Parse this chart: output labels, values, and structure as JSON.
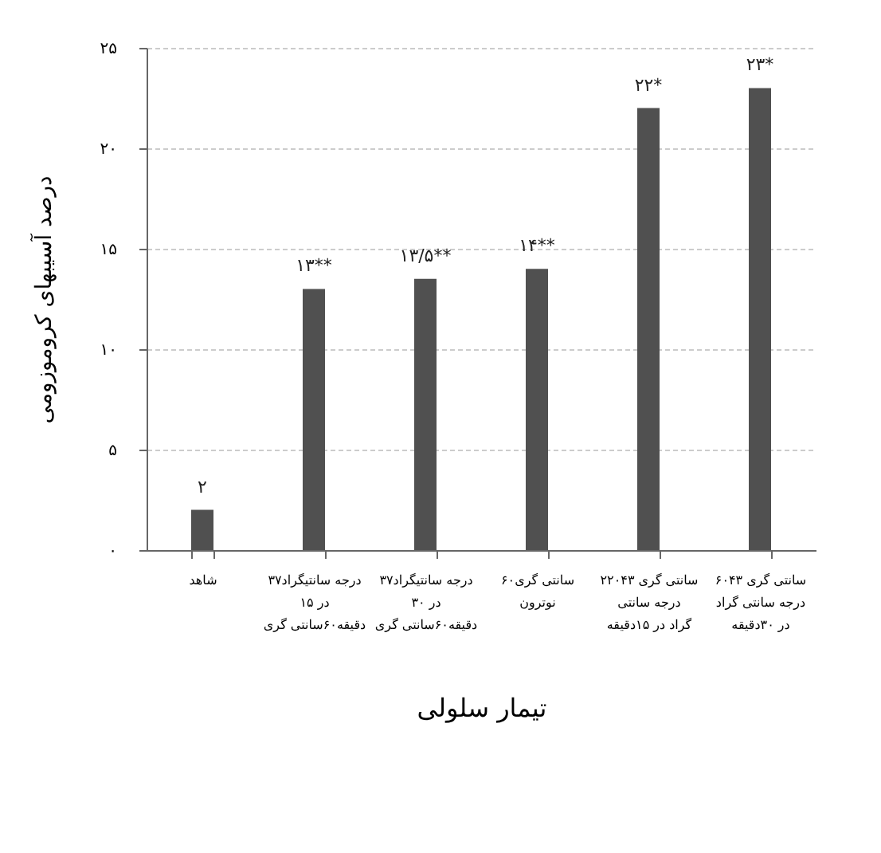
{
  "chart_data": {
    "type": "bar",
    "xlabel": "تیمار سلولی",
    "ylabel": "درصد آسیبهای کروموزومی",
    "categories": [
      "شاهد",
      "۳۷درجه سانتیگراد\nدر ۱۵\nدقیقه۶۰سانتی گری",
      "۳۷درجه سانتیگراد\nدر ۳۰\nدقیقه۶۰سانتی گری",
      "۶۰سانتی گری\nنوترون",
      "۲۲۰سانتی گری ۴۳\nدرجه سانتی\nگراد در ۱۵دقیقه",
      "۶۰سانتی گری ۴۳\nدرجه سانتی گراد\nدر ۳۰دقیقه"
    ],
    "values": [
      2,
      13,
      13.5,
      14,
      22,
      23
    ],
    "value_labels": [
      "۲",
      "۱۳**",
      "۱۳/۵**",
      "۱۴**",
      "۲۲*",
      "۲۳*"
    ],
    "color": "#505050",
    "ylim": [
      0,
      25
    ],
    "yticks": [
      {
        "value": 0,
        "label": "۰"
      },
      {
        "value": 5,
        "label": "۵"
      },
      {
        "value": 10,
        "label": "۱۰"
      },
      {
        "value": 15,
        "label": "۱۵"
      },
      {
        "value": 20,
        "label": "۲۰"
      },
      {
        "value": 25,
        "label": "۲۵"
      }
    ],
    "grid": "y"
  }
}
